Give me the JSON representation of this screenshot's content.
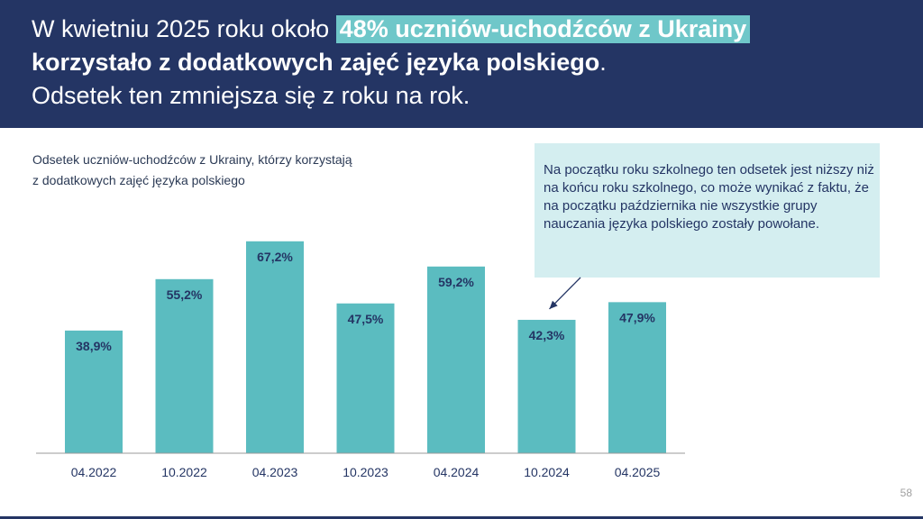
{
  "headline": {
    "line1_prefix": "W kwietniu 2025 roku około ",
    "line1_highlight": "48% uczniów-uchodźców z Ukrainy",
    "line2_bold": "korzystało z dodatkowych zajęć języka polskiego",
    "line2_suffix": ".",
    "line3": "Odsetek ten zmniejsza się z roku na rok."
  },
  "chart_caption": {
    "line1": "Odsetek uczniów-uchodźców z Ukrainy, którzy korzystają",
    "line2": "z dodatkowych zajęć języka polskiego"
  },
  "callout": {
    "text": "Na początku roku szkolnego ten odsetek jest niższy niż na końcu roku szkolnego, co może wynikać z faktu, że na początku października nie wszystkie grupy nauczania języka polskiego zostały powołane."
  },
  "page_number": "58",
  "colors": {
    "header_bg": "#243564",
    "accent": "#6fc7c9",
    "bar": "#5bbcc0",
    "callout_bg": "#d4eef0",
    "label_text": "#243564"
  },
  "chart_data": {
    "type": "bar",
    "categories": [
      "04.2022",
      "10.2022",
      "04.2023",
      "10.2023",
      "04.2024",
      "10.2024",
      "04.2025"
    ],
    "values": [
      38.9,
      55.2,
      67.2,
      47.5,
      59.2,
      42.3,
      47.9
    ],
    "data_labels": [
      "38,9%",
      "55,2%",
      "67,2%",
      "47,5%",
      "59,2%",
      "42,3%",
      "47,9%"
    ],
    "title": "Odsetek uczniów-uchodźców z Ukrainy, którzy korzystają z dodatkowych zajęć języka polskiego",
    "xlabel": "",
    "ylabel": "",
    "ylim": [
      0,
      70
    ],
    "grid": false,
    "legend": "none",
    "annotation_target_category": "10.2024"
  }
}
